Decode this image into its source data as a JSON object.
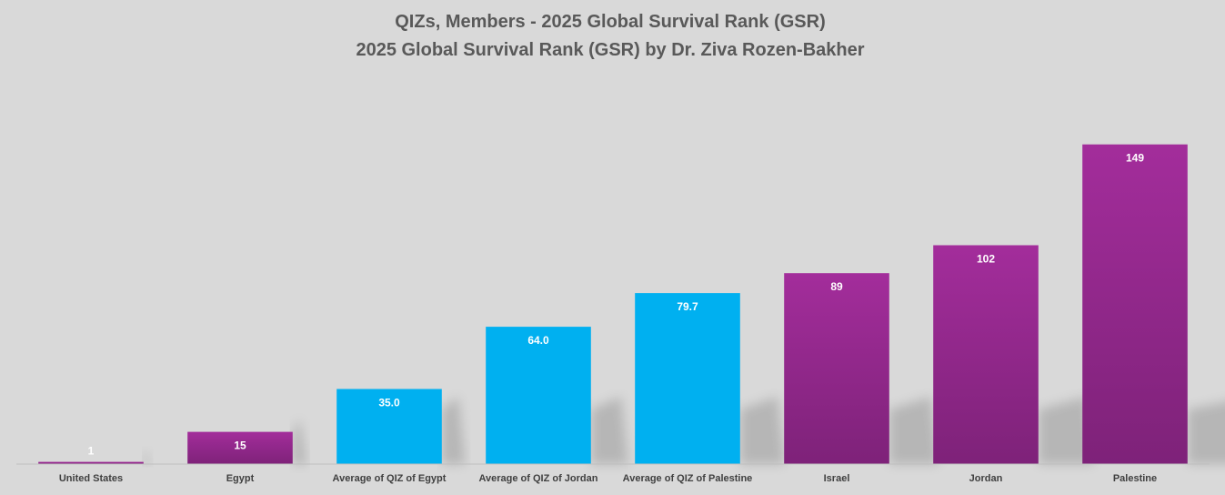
{
  "chart_data": {
    "type": "bar",
    "title": "QIZs, Members - 2025 Global Survival Rank (GSR)",
    "subtitle": "2025 Global Survival Rank (GSR) by Dr. Ziva Rozen-Bakher",
    "xlabel": "",
    "ylabel": "",
    "ylim": [
      0,
      160
    ],
    "categories": [
      "United States",
      "Egypt",
      "Average of QIZ of Egypt",
      "Average of QIZ of Jordan",
      "Average of QIZ of Palestine",
      "Israel",
      "Jordan",
      "Palestine"
    ],
    "values": [
      1,
      15,
      35.0,
      64.0,
      79.7,
      89,
      102,
      149
    ],
    "value_labels": [
      "1",
      "15",
      "35.0",
      "64.0",
      "79.7",
      "89",
      "102",
      "149"
    ],
    "bar_kinds": [
      "member",
      "member",
      "average",
      "average",
      "average",
      "member",
      "member",
      "member"
    ],
    "colors": {
      "member": "#9b2a93",
      "member_dark": "#7e2279",
      "average": "#00b0f0",
      "background": "#d9d9d9",
      "title": "#595959",
      "axis_text": "#404040"
    },
    "grid": false,
    "legend": "none"
  }
}
